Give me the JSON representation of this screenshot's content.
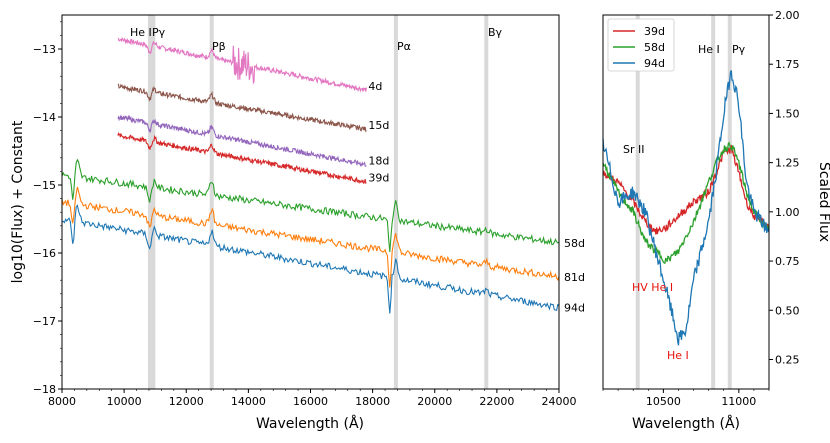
{
  "chart_data": [
    {
      "type": "line",
      "panel": "left",
      "xlabel": "Wavelength (Å)",
      "ylabel": "log10(Flux) + Constant",
      "xlim": [
        8000,
        24000
      ],
      "ylim": [
        -18,
        -12.5
      ],
      "xticks": [
        "8000",
        "10000",
        "12000",
        "14000",
        "16000",
        "18000",
        "20000",
        "22000",
        "24000"
      ],
      "yticks": [
        "-13",
        "-14",
        "-15",
        "-16",
        "-17",
        "-18"
      ],
      "lines_marked": [
        {
          "label": "He I",
          "x": 10830
        },
        {
          "label": "Pγ",
          "x": 10940
        },
        {
          "label": "Pβ",
          "x": 12820
        },
        {
          "label": "Pα",
          "x": 18750
        },
        {
          "label": "Bγ",
          "x": 21660
        }
      ],
      "series": [
        {
          "name": "4d",
          "color": "#e377c2",
          "x": [
            9800,
            17800
          ],
          "start": -12.85,
          "end": -13.6
        },
        {
          "name": "15d",
          "color": "#8c564b",
          "x": [
            9800,
            17800
          ],
          "start": -13.55,
          "end": -14.18
        },
        {
          "name": "18d",
          "color": "#9467bd",
          "x": [
            9800,
            17800
          ],
          "start": -14.0,
          "end": -14.7
        },
        {
          "name": "39d",
          "color": "#d62728",
          "x": [
            9800,
            17800
          ],
          "start": -14.27,
          "end": -14.95
        },
        {
          "name": "58d",
          "color": "#2ca02c",
          "x": [
            8000,
            24000
          ],
          "start": -14.85,
          "end": -15.85
        },
        {
          "name": "81d",
          "color": "#ff7f0e",
          "x": [
            8000,
            24000
          ],
          "start": -15.25,
          "end": -16.35
        },
        {
          "name": "94d",
          "color": "#1f77b4",
          "x": [
            8000,
            24000
          ],
          "start": -15.5,
          "end": -16.8
        }
      ],
      "labels": [
        "4d",
        "15d",
        "18d",
        "39d",
        "58d",
        "81d",
        "94d"
      ]
    },
    {
      "type": "line",
      "panel": "right",
      "xlabel": "Wavelength (Å)",
      "ylabel": "Scaled Flux",
      "xlim": [
        10100,
        11200
      ],
      "ylim": [
        0.1,
        2.0
      ],
      "xticks": [
        "10500",
        "11000"
      ],
      "yticks": [
        "2.00",
        "1.75",
        "1.50",
        "1.25",
        "1.00",
        "0.75",
        "0.50",
        "0.25"
      ],
      "lines_marked": [
        {
          "label": "Sr II",
          "x": 10330
        },
        {
          "label": "He I",
          "x": 10830
        },
        {
          "label": "Pγ",
          "x": 10940
        }
      ],
      "annotations": [
        {
          "text": "HV He I",
          "x": 10480,
          "y": 0.65
        },
        {
          "text": "He I",
          "x": 10600,
          "y": 0.25
        }
      ],
      "legend": [
        "39d",
        "58d",
        "94d"
      ],
      "legend_position": "top-left",
      "series": [
        {
          "name": "39d",
          "color": "#d62728",
          "x": [
            10100,
            10200,
            10300,
            10380,
            10450,
            10520,
            10600,
            10700,
            10800,
            10850,
            10900,
            10950,
            11000,
            11050,
            11100,
            11200
          ],
          "y": [
            1.2,
            1.15,
            1.05,
            0.95,
            0.9,
            0.92,
            0.98,
            1.05,
            1.1,
            1.2,
            1.3,
            1.32,
            1.2,
            1.05,
            0.98,
            0.92
          ]
        },
        {
          "name": "58d",
          "color": "#2ca02c",
          "x": [
            10100,
            10200,
            10300,
            10380,
            10450,
            10520,
            10600,
            10700,
            10800,
            10850,
            10900,
            10950,
            11000,
            11050,
            11100,
            11200
          ],
          "y": [
            1.25,
            1.1,
            1.0,
            0.85,
            0.8,
            0.75,
            0.8,
            0.95,
            1.15,
            1.25,
            1.32,
            1.34,
            1.25,
            1.1,
            1.0,
            0.9
          ]
        },
        {
          "name": "94d",
          "color": "#1f77b4",
          "x": [
            10100,
            10200,
            10300,
            10380,
            10450,
            10520,
            10600,
            10650,
            10700,
            10800,
            10850,
            10900,
            10950,
            11000,
            11050,
            11100,
            11200
          ],
          "y": [
            1.35,
            1.05,
            1.1,
            1.0,
            0.8,
            0.6,
            0.35,
            0.4,
            0.65,
            0.95,
            1.2,
            1.5,
            1.72,
            1.55,
            1.15,
            1.0,
            0.9
          ]
        }
      ]
    }
  ],
  "ann": {
    "heI": "He I",
    "pgam": "Pγ",
    "pbeta": "Pβ",
    "palpha": "Pα",
    "bgam": "Bγ",
    "srII": "Sr II",
    "hvheI": "HV He I",
    "heI_red": "He I"
  }
}
